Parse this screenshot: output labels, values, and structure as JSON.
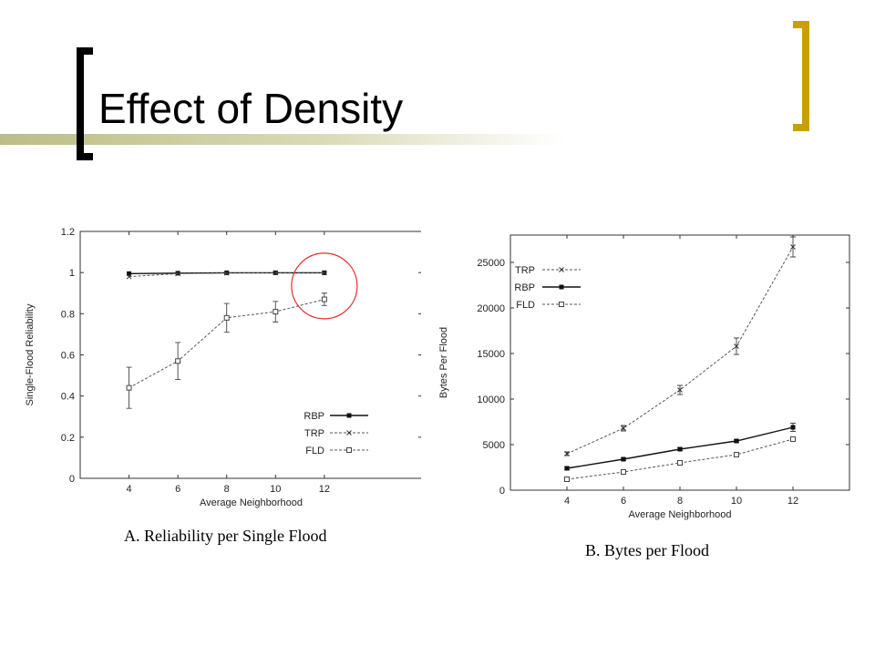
{
  "slide": {
    "title": "Effect of Density",
    "accent_color": "#c9a000",
    "rule_color": "#c8c896"
  },
  "chart_data": [
    {
      "type": "line",
      "caption": "A. Reliability per Single Flood",
      "xlabel": "Average Neighborhood",
      "ylabel": "Single-Flood Reliability",
      "xlim": [
        2,
        16
      ],
      "ylim": [
        0,
        1.2
      ],
      "x_ticks": [
        4,
        6,
        8,
        10,
        12
      ],
      "y_ticks": [
        0,
        0.2,
        0.4,
        0.6,
        0.8,
        1,
        1.2
      ],
      "y_tick_labels": [
        "0",
        "0.2",
        "0.4",
        "0.6",
        "0.8",
        "1",
        "1.2"
      ],
      "legend_position": "bottom-right",
      "annotation": "red circle highlighting the x=12 points",
      "series": [
        {
          "name": "RBP",
          "style": "solid",
          "marker": "filled-square",
          "x": [
            4,
            6,
            8,
            10,
            12
          ],
          "y": [
            0.995,
            0.997,
            0.999,
            0.999,
            0.999
          ]
        },
        {
          "name": "TRP",
          "style": "dashed",
          "marker": "cross",
          "x": [
            4,
            6,
            8,
            10,
            12
          ],
          "y": [
            0.98,
            0.995,
            0.998,
            0.999,
            0.999
          ]
        },
        {
          "name": "FLD",
          "style": "dashed",
          "marker": "open-square",
          "x": [
            4,
            6,
            8,
            10,
            12
          ],
          "y": [
            0.44,
            0.57,
            0.78,
            0.81,
            0.87
          ],
          "err": [
            0.1,
            0.09,
            0.07,
            0.05,
            0.03
          ]
        }
      ]
    },
    {
      "type": "line",
      "caption": "B. Bytes per Flood",
      "xlabel": "Average Neighborhood",
      "ylabel": "Bytes Per Flood",
      "xlim": [
        2,
        14
      ],
      "ylim": [
        0,
        28000
      ],
      "x_ticks": [
        4,
        6,
        8,
        10,
        12
      ],
      "y_ticks": [
        0,
        5000,
        10000,
        15000,
        20000,
        25000
      ],
      "y_tick_labels": [
        "0",
        "5000",
        "10000",
        "15000",
        "20000",
        "25000"
      ],
      "legend_position": "top-left",
      "series": [
        {
          "name": "TRP",
          "style": "dashed",
          "marker": "cross",
          "x": [
            4,
            6,
            8,
            10,
            12
          ],
          "y": [
            4000,
            6800,
            11000,
            15800,
            26700
          ],
          "err": [
            200,
            300,
            500,
            900,
            1100
          ]
        },
        {
          "name": "RBP",
          "style": "solid",
          "marker": "filled-square",
          "x": [
            4,
            6,
            8,
            10,
            12
          ],
          "y": [
            2400,
            3400,
            4500,
            5400,
            6900
          ],
          "err": [
            150,
            150,
            150,
            150,
            450
          ]
        },
        {
          "name": "FLD",
          "style": "dashed",
          "marker": "open-square",
          "x": [
            4,
            6,
            8,
            10,
            12
          ],
          "y": [
            1200,
            2000,
            3000,
            3900,
            5600
          ],
          "err": [
            100,
            100,
            100,
            100,
            150
          ]
        }
      ]
    }
  ]
}
